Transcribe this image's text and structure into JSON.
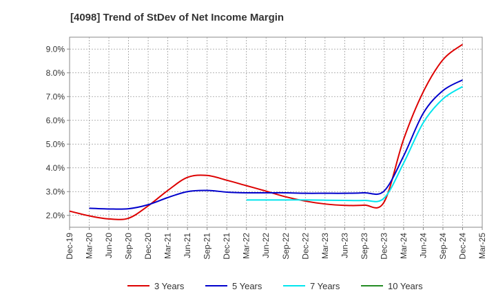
{
  "chart_data": {
    "type": "line",
    "title": "[4098]  Trend of StDev of Net Income Margin",
    "xlabel": "",
    "ylabel": "",
    "x_ticks": [
      "Dec-19",
      "Mar-20",
      "Jun-20",
      "Sep-20",
      "Dec-20",
      "Mar-21",
      "Jun-21",
      "Sep-21",
      "Dec-21",
      "Mar-22",
      "Jun-22",
      "Sep-22",
      "Dec-22",
      "Mar-23",
      "Jun-23",
      "Sep-23",
      "Dec-23",
      "Mar-24",
      "Jun-24",
      "Sep-24",
      "Dec-24",
      "Mar-25"
    ],
    "y_ticks": [
      "2.0%",
      "3.0%",
      "4.0%",
      "5.0%",
      "6.0%",
      "7.0%",
      "8.0%",
      "9.0%"
    ],
    "y_tick_values": [
      2.0,
      3.0,
      4.0,
      5.0,
      6.0,
      7.0,
      8.0,
      9.0
    ],
    "ylim": [
      1.5,
      9.5
    ],
    "grid": true,
    "legend_position": "bottom",
    "series": [
      {
        "name": "3 Years",
        "color": "#dd0000",
        "x": [
          "Dec-19",
          "Mar-20",
          "Jun-20",
          "Sep-20",
          "Dec-20",
          "Mar-21",
          "Jun-21",
          "Sep-21",
          "Dec-21",
          "Mar-22",
          "Jun-22",
          "Sep-22",
          "Dec-22",
          "Mar-23",
          "Jun-23",
          "Sep-23",
          "Dec-23",
          "Mar-24",
          "Jun-24",
          "Sep-24",
          "Dec-24"
        ],
        "values": [
          2.18,
          1.98,
          1.85,
          1.88,
          2.4,
          3.05,
          3.6,
          3.68,
          3.48,
          3.25,
          3.02,
          2.78,
          2.6,
          2.48,
          2.42,
          2.43,
          2.55,
          5.2,
          7.2,
          8.55,
          9.2
        ]
      },
      {
        "name": "5 Years",
        "color": "#0000cc",
        "x": [
          "Mar-20",
          "Jun-20",
          "Sep-20",
          "Dec-20",
          "Mar-21",
          "Jun-21",
          "Sep-21",
          "Dec-21",
          "Mar-22",
          "Jun-22",
          "Sep-22",
          "Dec-22",
          "Mar-23",
          "Jun-23",
          "Sep-23",
          "Dec-23",
          "Mar-24",
          "Jun-24",
          "Sep-24",
          "Dec-24"
        ],
        "values": [
          2.3,
          2.27,
          2.28,
          2.45,
          2.75,
          3.0,
          3.05,
          2.98,
          2.95,
          2.95,
          2.95,
          2.93,
          2.93,
          2.93,
          2.95,
          3.02,
          4.5,
          6.3,
          7.25,
          7.7
        ]
      },
      {
        "name": "7 Years",
        "color": "#00e5ee",
        "x": [
          "Mar-22",
          "Jun-22",
          "Sep-22",
          "Dec-22",
          "Mar-23",
          "Jun-23",
          "Sep-23",
          "Dec-23",
          "Mar-24",
          "Jun-24",
          "Sep-24",
          "Dec-24"
        ],
        "values": [
          2.65,
          2.65,
          2.65,
          2.65,
          2.64,
          2.63,
          2.63,
          2.72,
          4.2,
          5.9,
          6.9,
          7.42
        ]
      },
      {
        "name": "10 Years",
        "color": "#228b22",
        "x": [],
        "values": []
      }
    ]
  }
}
